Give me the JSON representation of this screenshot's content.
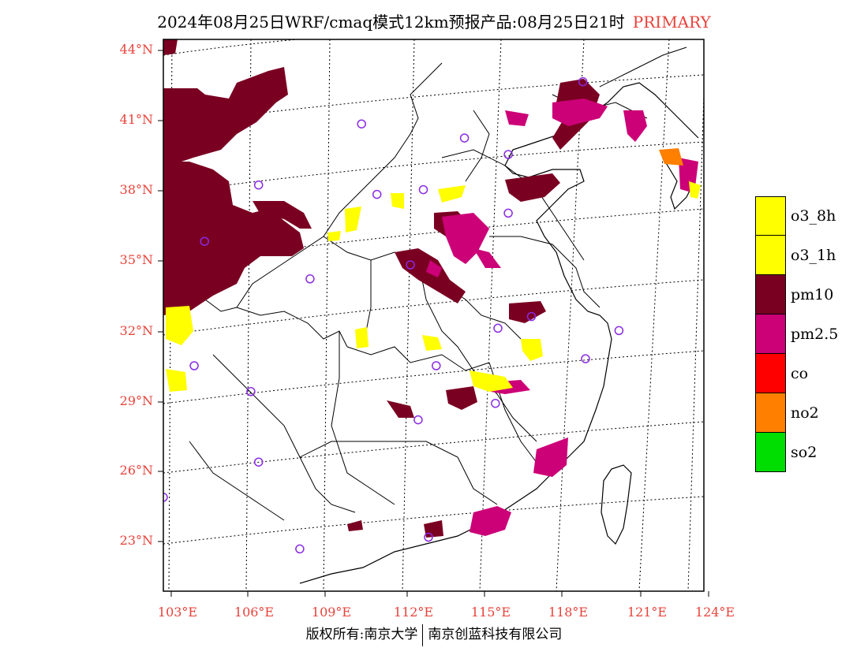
{
  "title": {
    "main": "2024年08月25日WRF/cmaq模式12km预报产品:08月25日21时",
    "tag": "PRIMARY"
  },
  "lat_labels": [
    "44°N",
    "41°N",
    "38°N",
    "35°N",
    "32°N",
    "29°N",
    "26°N",
    "23°N"
  ],
  "lon_labels": [
    "103°E",
    "106°E",
    "109°E",
    "112°E",
    "115°E",
    "118°E",
    "121°E",
    "124°E"
  ],
  "legend": [
    {
      "label": "o3_8h",
      "color": "#ffff00"
    },
    {
      "label": "o3_1h",
      "color": "#ffff00"
    },
    {
      "label": "pm10",
      "color": "#7a0022"
    },
    {
      "label": "pm2.5",
      "color": "#cc0077"
    },
    {
      "label": "co",
      "color": "#ff0000"
    },
    {
      "label": "no2",
      "color": "#ff7f00"
    },
    {
      "label": "so2",
      "color": "#00dd00"
    }
  ],
  "footer": {
    "left": "版权所有:南京大学",
    "right": "南京创蓝科技有限公司"
  },
  "colors": {
    "axis_labels": "#e8423a",
    "pm10": "#7a0022",
    "pm25": "#cc0077",
    "o3": "#ffff00",
    "no2": "#ff7f00",
    "station_marker": "#8a2be2"
  },
  "map": {
    "lon_range": [
      103,
      124
    ],
    "lat_range": [
      21,
      44.5
    ],
    "stations": [
      {
        "lon": 119.3,
        "lat": 42.7
      },
      {
        "lon": 110.7,
        "lat": 40.9
      },
      {
        "lon": 114.7,
        "lat": 40.3
      },
      {
        "lon": 116.4,
        "lat": 39.6
      },
      {
        "lon": 106.7,
        "lat": 38.3
      },
      {
        "lon": 111.3,
        "lat": 37.9
      },
      {
        "lon": 113.1,
        "lat": 38.1
      },
      {
        "lon": 116.4,
        "lat": 37.1
      },
      {
        "lon": 104.6,
        "lat": 35.9
      },
      {
        "lon": 112.6,
        "lat": 34.9
      },
      {
        "lon": 108.7,
        "lat": 34.3
      },
      {
        "lon": 117.3,
        "lat": 32.7
      },
      {
        "lon": 116.0,
        "lat": 32.2
      },
      {
        "lon": 120.7,
        "lat": 32.1
      },
      {
        "lon": 113.6,
        "lat": 30.6
      },
      {
        "lon": 104.2,
        "lat": 30.6
      },
      {
        "lon": 119.4,
        "lat": 30.9
      },
      {
        "lon": 106.4,
        "lat": 29.5
      },
      {
        "lon": 115.9,
        "lat": 29.0
      },
      {
        "lon": 112.9,
        "lat": 28.3
      },
      {
        "lon": 106.7,
        "lat": 26.5
      },
      {
        "lon": 103.0,
        "lat": 25.0
      },
      {
        "lon": 113.3,
        "lat": 23.3
      },
      {
        "lon": 108.3,
        "lat": 22.8
      }
    ]
  }
}
